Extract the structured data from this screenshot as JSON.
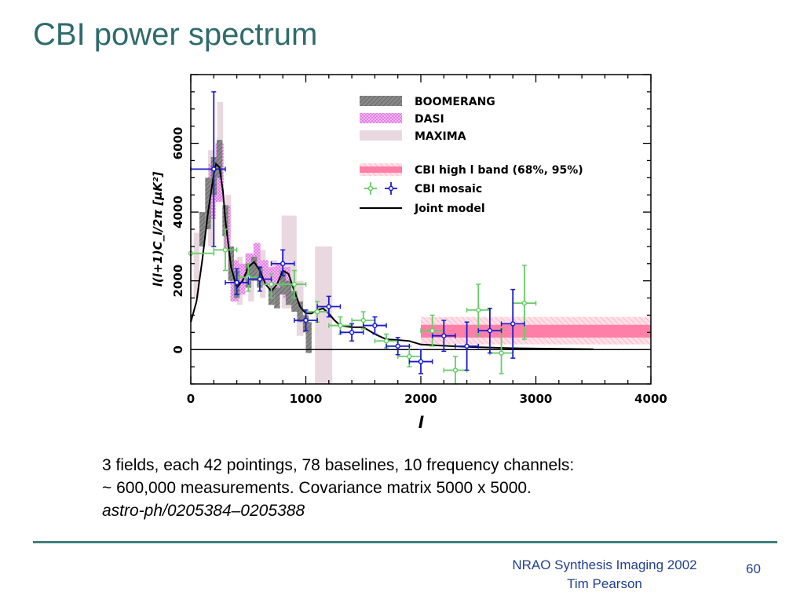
{
  "slide": {
    "title": "CBI power spectrum",
    "body_lines": [
      "3 fields, each 42 pointings, 78 baselines, 10 frequency channels:",
      "~ 600,000 measurements. Covariance matrix 5000 x 5000."
    ],
    "reference": "astro-ph/0205384–0205388",
    "footer_line1": "NRAO Synthesis Imaging 2002",
    "footer_line2": "Tim Pearson",
    "page_number": "60"
  },
  "chart_data": {
    "type": "scatter",
    "xlabel": "l",
    "ylabel": "l(l+1)C_l/2π [μK²]",
    "xlim": [
      0,
      4000
    ],
    "ylim": [
      -1000,
      8000
    ],
    "xticks": [
      "0",
      "1000",
      "2000",
      "3000",
      "4000"
    ],
    "yticks": [
      "0",
      "2000",
      "4000",
      "6000"
    ],
    "xtick_values": [
      0,
      1000,
      2000,
      3000,
      4000
    ],
    "ytick_values": [
      0,
      2000,
      4000,
      6000
    ],
    "grid": false,
    "legend_position": "top-right",
    "legend": [
      {
        "label": "BOOMERANG",
        "key": "boomerang"
      },
      {
        "label": "DASI",
        "key": "dasi"
      },
      {
        "label": "MAXIMA",
        "key": "maxima"
      },
      {
        "label": "CBI high l band (68%, 95%)",
        "key": "cbi_band"
      },
      {
        "label": "CBI mosaic",
        "key": "cbi_mosaic"
      },
      {
        "label": "Joint model",
        "key": "model"
      }
    ],
    "colors": {
      "boomerang": "#7f7f7f",
      "dasi": "#ee88ee",
      "maxima": "#ead8e0",
      "cbi_band": "#ff7fa8",
      "cbi_band_95": "#ffb8cc",
      "cbi_mosaic_green": "#66cc66",
      "cbi_mosaic_blue": "#1a1acc",
      "model": "#000000"
    },
    "boomerang": [
      {
        "lmin": 75,
        "lmax": 125,
        "ylo": 3000,
        "yhi": 4000
      },
      {
        "lmin": 125,
        "lmax": 175,
        "ylo": 3500,
        "yhi": 5000
      },
      {
        "lmin": 175,
        "lmax": 225,
        "ylo": 4500,
        "yhi": 5600
      },
      {
        "lmin": 225,
        "lmax": 275,
        "ylo": 5000,
        "yhi": 6100
      },
      {
        "lmin": 275,
        "lmax": 325,
        "ylo": 3300,
        "yhi": 4200
      },
      {
        "lmin": 325,
        "lmax": 375,
        "ylo": 2000,
        "yhi": 3000
      },
      {
        "lmin": 375,
        "lmax": 425,
        "ylo": 1500,
        "yhi": 2300
      },
      {
        "lmin": 475,
        "lmax": 525,
        "ylo": 1800,
        "yhi": 2500
      },
      {
        "lmin": 525,
        "lmax": 575,
        "ylo": 2000,
        "yhi": 2700
      },
      {
        "lmin": 575,
        "lmax": 625,
        "ylo": 1800,
        "yhi": 2400
      },
      {
        "lmin": 675,
        "lmax": 725,
        "ylo": 1300,
        "yhi": 1800
      },
      {
        "lmin": 725,
        "lmax": 775,
        "ylo": 1200,
        "yhi": 1800
      },
      {
        "lmin": 775,
        "lmax": 825,
        "ylo": 1600,
        "yhi": 2300
      },
      {
        "lmin": 825,
        "lmax": 875,
        "ylo": 1300,
        "yhi": 2000
      },
      {
        "lmin": 875,
        "lmax": 925,
        "ylo": 1100,
        "yhi": 1700
      },
      {
        "lmin": 925,
        "lmax": 975,
        "ylo": 800,
        "yhi": 1400
      },
      {
        "lmin": 975,
        "lmax": 1025,
        "ylo": 500,
        "yhi": 1000
      },
      {
        "lmin": 1000,
        "lmax": 1050,
        "ylo": -100,
        "yhi": 800
      }
    ],
    "dasi": [
      {
        "lmin": 155,
        "lmax": 215,
        "ylo": 3800,
        "yhi": 5400
      },
      {
        "lmin": 215,
        "lmax": 285,
        "ylo": 4300,
        "yhi": 6000
      },
      {
        "lmin": 285,
        "lmax": 345,
        "ylo": 2900,
        "yhi": 4200
      },
      {
        "lmin": 345,
        "lmax": 415,
        "ylo": 1400,
        "yhi": 2600
      },
      {
        "lmin": 415,
        "lmax": 475,
        "ylo": 1600,
        "yhi": 2500
      },
      {
        "lmin": 475,
        "lmax": 545,
        "ylo": 2000,
        "yhi": 2800
      },
      {
        "lmin": 545,
        "lmax": 605,
        "ylo": 2300,
        "yhi": 3100
      },
      {
        "lmin": 605,
        "lmax": 675,
        "ylo": 1900,
        "yhi": 2600
      },
      {
        "lmin": 675,
        "lmax": 735,
        "ylo": 1700,
        "yhi": 2400
      },
      {
        "lmin": 735,
        "lmax": 805,
        "ylo": 1800,
        "yhi": 2500
      },
      {
        "lmin": 805,
        "lmax": 865,
        "ylo": 1500,
        "yhi": 2400
      }
    ],
    "maxima": [
      {
        "lmin": 25,
        "lmax": 75,
        "ylo": 1500,
        "yhi": 3400
      },
      {
        "lmin": 150,
        "lmax": 200,
        "ylo": 3000,
        "yhi": 5800
      },
      {
        "lmin": 230,
        "lmax": 280,
        "ylo": 4500,
        "yhi": 7200
      },
      {
        "lmin": 300,
        "lmax": 350,
        "ylo": 3200,
        "yhi": 4500
      },
      {
        "lmin": 400,
        "lmax": 450,
        "ylo": 1300,
        "yhi": 2700
      },
      {
        "lmin": 500,
        "lmax": 550,
        "ylo": 1400,
        "yhi": 2700
      },
      {
        "lmin": 600,
        "lmax": 650,
        "ylo": 1500,
        "yhi": 2900
      },
      {
        "lmin": 700,
        "lmax": 750,
        "ylo": 1400,
        "yhi": 2600
      },
      {
        "lmin": 790,
        "lmax": 920,
        "ylo": 1200,
        "yhi": 3900
      },
      {
        "lmin": 920,
        "lmax": 980,
        "ylo": 400,
        "yhi": 2000
      },
      {
        "lmin": 1080,
        "lmax": 1230,
        "ylo": -1000,
        "yhi": 3000
      }
    ],
    "cbi_band": {
      "lmin": 2000,
      "lmax": 4000,
      "y68_lo": 350,
      "y68_hi": 720,
      "y95_lo": 150,
      "y95_hi": 950
    },
    "cbi_mosaic_green": [
      {
        "l": 0,
        "lmin": 0,
        "lmax": 200,
        "y": 2800,
        "ylo": 2800,
        "yhi": 2800
      },
      {
        "l": 300,
        "lmin": 200,
        "lmax": 400,
        "y": 2900,
        "ylo": 2300,
        "yhi": 3500
      },
      {
        "l": 500,
        "lmin": 400,
        "lmax": 600,
        "y": 2100,
        "ylo": 1700,
        "yhi": 2500
      },
      {
        "l": 700,
        "lmin": 600,
        "lmax": 800,
        "y": 1900,
        "ylo": 1500,
        "yhi": 2200
      },
      {
        "l": 900,
        "lmin": 800,
        "lmax": 1000,
        "y": 1900,
        "ylo": 1500,
        "yhi": 2300
      },
      {
        "l": 1100,
        "lmin": 1000,
        "lmax": 1200,
        "y": 1100,
        "ylo": 800,
        "yhi": 1400
      },
      {
        "l": 1300,
        "lmin": 1200,
        "lmax": 1400,
        "y": 700,
        "ylo": 450,
        "yhi": 950
      },
      {
        "l": 1500,
        "lmin": 1400,
        "lmax": 1600,
        "y": 850,
        "ylo": 600,
        "yhi": 1100
      },
      {
        "l": 1700,
        "lmin": 1600,
        "lmax": 1800,
        "y": 250,
        "ylo": 50,
        "yhi": 450
      },
      {
        "l": 1900,
        "lmin": 1800,
        "lmax": 2000,
        "y": -200,
        "ylo": -500,
        "yhi": 100
      },
      {
        "l": 2100,
        "lmin": 2000,
        "lmax": 2200,
        "y": 550,
        "ylo": 100,
        "yhi": 1000
      },
      {
        "l": 2300,
        "lmin": 2200,
        "lmax": 2400,
        "y": -600,
        "ylo": -1000,
        "yhi": -200
      },
      {
        "l": 2500,
        "lmin": 2400,
        "lmax": 2600,
        "y": 1150,
        "ylo": 400,
        "yhi": 1900
      },
      {
        "l": 2700,
        "lmin": 2600,
        "lmax": 2800,
        "y": -100,
        "ylo": -700,
        "yhi": 600
      },
      {
        "l": 2900,
        "lmin": 2800,
        "lmax": 3000,
        "y": 1350,
        "ylo": 300,
        "yhi": 2450
      }
    ],
    "cbi_mosaic_blue": [
      {
        "l": 200,
        "lmin": 0,
        "lmax": 300,
        "y": 5250,
        "ylo": 3000,
        "yhi": 7500
      },
      {
        "l": 400,
        "lmin": 300,
        "lmax": 500,
        "y": 1950,
        "ylo": 1600,
        "yhi": 2350
      },
      {
        "l": 600,
        "lmin": 500,
        "lmax": 700,
        "y": 2050,
        "ylo": 1700,
        "yhi": 2400
      },
      {
        "l": 800,
        "lmin": 700,
        "lmax": 900,
        "y": 2500,
        "ylo": 2150,
        "yhi": 2900
      },
      {
        "l": 1000,
        "lmin": 900,
        "lmax": 1100,
        "y": 850,
        "ylo": 550,
        "yhi": 1150
      },
      {
        "l": 1200,
        "lmin": 1100,
        "lmax": 1300,
        "y": 1250,
        "ylo": 950,
        "yhi": 1550
      },
      {
        "l": 1400,
        "lmin": 1300,
        "lmax": 1500,
        "y": 500,
        "ylo": 250,
        "yhi": 750
      },
      {
        "l": 1600,
        "lmin": 1500,
        "lmax": 1700,
        "y": 700,
        "ylo": 450,
        "yhi": 950
      },
      {
        "l": 1800,
        "lmin": 1700,
        "lmax": 1900,
        "y": 100,
        "ylo": -150,
        "yhi": 350
      },
      {
        "l": 2000,
        "lmin": 1900,
        "lmax": 2100,
        "y": -350,
        "ylo": -700,
        "yhi": 0
      },
      {
        "l": 2200,
        "lmin": 2100,
        "lmax": 2300,
        "y": 400,
        "ylo": -50,
        "yhi": 850
      },
      {
        "l": 2400,
        "lmin": 2300,
        "lmax": 2500,
        "y": 100,
        "ylo": -600,
        "yhi": 800
      },
      {
        "l": 2600,
        "lmin": 2500,
        "lmax": 2700,
        "y": 550,
        "ylo": -100,
        "yhi": 1200
      },
      {
        "l": 2800,
        "lmin": 2700,
        "lmax": 2900,
        "y": 750,
        "ylo": -250,
        "yhi": 1750
      }
    ],
    "joint_model": {
      "l": [
        0,
        50,
        100,
        150,
        200,
        220,
        250,
        280,
        300,
        350,
        400,
        450,
        500,
        550,
        600,
        650,
        700,
        750,
        800,
        850,
        900,
        950,
        1000,
        1050,
        1100,
        1150,
        1200,
        1250,
        1300,
        1400,
        1500,
        1600,
        1700,
        1800,
        1900,
        2000,
        2200,
        2400,
        2600,
        2800,
        3000,
        3500
      ],
      "y": [
        800,
        1400,
        2600,
        4000,
        5100,
        5400,
        5300,
        4600,
        3800,
        2400,
        1800,
        2000,
        2400,
        2550,
        2300,
        1900,
        1700,
        1900,
        2300,
        2200,
        1700,
        1250,
        1050,
        1050,
        1150,
        1200,
        1050,
        850,
        700,
        650,
        650,
        450,
        300,
        280,
        250,
        150,
        110,
        80,
        60,
        40,
        30,
        10
      ]
    }
  }
}
